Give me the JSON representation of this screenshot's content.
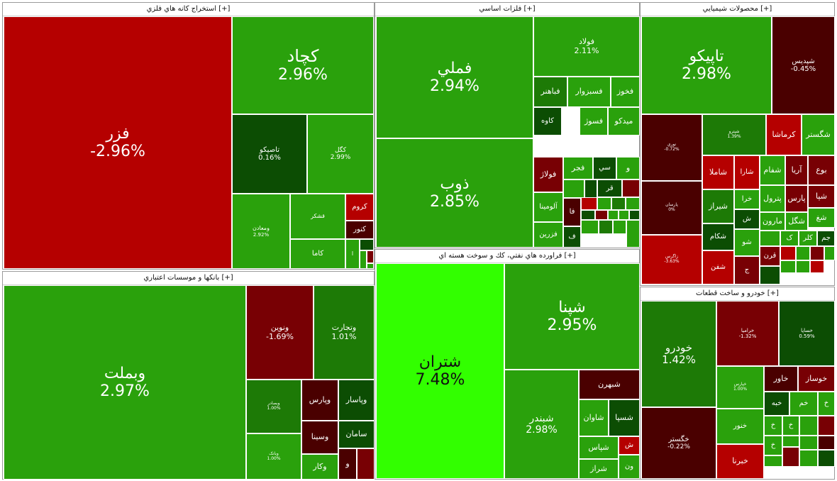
{
  "colors": {
    "strong_green": "#32ff00",
    "green": "#2aa10c",
    "mid_green": "#1d7a06",
    "dark_green": "#0c4d03",
    "red": "#b50000",
    "dark_red": "#780004",
    "darkest_red": "#4a0000"
  },
  "sectors": [
    {
      "title": "استخراج کانه هاي فلزي [+]",
      "tiles": [
        {
          "name": "فزر",
          "pct": "-2.96%",
          "color": "#b50000"
        },
        {
          "name": "کچاد",
          "pct": "2.96%",
          "color": "#2aa10c"
        },
        {
          "name": "تاصيکو",
          "pct": "0.16%",
          "color": "#0c4d03"
        },
        {
          "name": "کگل",
          "pct": "2.99%",
          "color": "#2aa10c"
        },
        {
          "name": "ومعادن",
          "pct": "2.92%",
          "color": "#2aa10c"
        },
        {
          "name": "قشکر",
          "pct": "",
          "color": "#2aa10c"
        },
        {
          "name": "کروم",
          "pct": "",
          "color": "#b50000"
        },
        {
          "name": "کنور",
          "pct": "",
          "color": "#4a0000"
        },
        {
          "name": "کاما",
          "pct": "",
          "color": "#2aa10c"
        },
        {
          "name": "ا",
          "pct": "",
          "color": "#2aa10c"
        },
        {
          "name": "",
          "pct": "",
          "color": "#0c4d03"
        },
        {
          "name": "",
          "pct": "",
          "color": "#2aa10c"
        },
        {
          "name": "",
          "pct": "",
          "color": "#780004"
        },
        {
          "name": "",
          "pct": "",
          "color": "#2aa10c"
        }
      ]
    },
    {
      "title": "فلزات اساسي [+]",
      "tiles": [
        {
          "name": "فملي",
          "pct": "2.94%",
          "color": "#2aa10c"
        },
        {
          "name": "فولاد",
          "pct": "2.11%",
          "color": "#2aa10c"
        },
        {
          "name": "ذوب",
          "pct": "2.85%",
          "color": "#2aa10c"
        },
        {
          "name": "فخوز",
          "pct": "",
          "color": "#2aa10c"
        },
        {
          "name": "فسبزوار",
          "pct": "",
          "color": "#2aa10c"
        },
        {
          "name": "فباهنر",
          "pct": "",
          "color": "#1d7a06"
        },
        {
          "name": "ميدکو",
          "pct": "",
          "color": "#2aa10c"
        },
        {
          "name": "فسوژ",
          "pct": "",
          "color": "#2aa10c"
        },
        {
          "name": "کاوه",
          "pct": "",
          "color": "#0c4d03"
        },
        {
          "name": "و",
          "pct": "",
          "color": "#2aa10c"
        },
        {
          "name": "سي",
          "pct": "",
          "color": "#0c4d03"
        },
        {
          "name": "فجر",
          "pct": "",
          "color": "#2aa10c"
        },
        {
          "name": "فولاژ",
          "pct": "",
          "color": "#780004"
        },
        {
          "name": "قر",
          "pct": "",
          "color": "#0c4d03"
        },
        {
          "name": "آلومينا",
          "pct": "",
          "color": "#2aa10c"
        },
        {
          "name": "فا",
          "pct": "",
          "color": "#4a0000"
        },
        {
          "name": "فزرين",
          "pct": "",
          "color": "#2aa10c"
        },
        {
          "name": "ف",
          "pct": "",
          "color": "#0c4d03"
        },
        {
          "name": "",
          "pct": "",
          "color": "#2aa10c"
        },
        {
          "name": "",
          "pct": "",
          "color": "#0c4d03"
        },
        {
          "name": "",
          "pct": "",
          "color": "#780004"
        },
        {
          "name": "",
          "pct": "",
          "color": "#b50000"
        },
        {
          "name": "",
          "pct": "",
          "color": "#2aa10c"
        },
        {
          "name": "",
          "pct": "",
          "color": "#1d7a06"
        },
        {
          "name": "",
          "pct": "",
          "color": "#2aa10c"
        },
        {
          "name": "",
          "pct": "",
          "color": "#0c4d03"
        },
        {
          "name": "",
          "pct": "",
          "color": "#780004"
        },
        {
          "name": "",
          "pct": "",
          "color": "#2aa10c"
        },
        {
          "name": "",
          "pct": "",
          "color": "#2aa10c"
        },
        {
          "name": "",
          "pct": "",
          "color": "#0c4d03"
        },
        {
          "name": "",
          "pct": "",
          "color": "#2aa10c"
        },
        {
          "name": "",
          "pct": "",
          "color": "#1d7a06"
        },
        {
          "name": "",
          "pct": "",
          "color": "#2aa10c"
        },
        {
          "name": "",
          "pct": "",
          "color": "#2aa10c"
        }
      ]
    },
    {
      "title": "محصولات شيميايي [+]",
      "tiles": [
        {
          "name": "تاپيکو",
          "pct": "2.98%",
          "color": "#2aa10c"
        },
        {
          "name": "شپديس",
          "pct": "-0.45%",
          "color": "#4a0000"
        },
        {
          "name": "نوري",
          "pct": "-0.72%",
          "color": "#4a0000"
        },
        {
          "name": "شپترو",
          "pct": "1.39%",
          "color": "#1d7a06"
        },
        {
          "name": "کرماشا",
          "pct": "",
          "color": "#b50000"
        },
        {
          "name": "شگستر",
          "pct": "",
          "color": "#2aa10c"
        },
        {
          "name": "پارسان",
          "pct": "0%",
          "color": "#4a0000"
        },
        {
          "name": "شاملا",
          "pct": "",
          "color": "#b50000"
        },
        {
          "name": "شارا",
          "pct": "",
          "color": "#b50000"
        },
        {
          "name": "شفام",
          "pct": "",
          "color": "#2aa10c"
        },
        {
          "name": "آريا",
          "pct": "",
          "color": "#780004"
        },
        {
          "name": "بوع",
          "pct": "",
          "color": "#780004"
        },
        {
          "name": "زاگرس",
          "pct": "-3.63%",
          "color": "#b50000"
        },
        {
          "name": "شيراز",
          "pct": "",
          "color": "#1d7a06"
        },
        {
          "name": "خرا",
          "pct": "",
          "color": "#2aa10c"
        },
        {
          "name": "پترول",
          "pct": "",
          "color": "#2aa10c"
        },
        {
          "name": "پارس",
          "pct": "",
          "color": "#780004"
        },
        {
          "name": "شپا",
          "pct": "",
          "color": "#780004"
        },
        {
          "name": "شکام",
          "pct": "",
          "color": "#0c4d03"
        },
        {
          "name": "مارون",
          "pct": "",
          "color": "#2aa10c"
        },
        {
          "name": "شگل",
          "pct": "",
          "color": "#2aa10c"
        },
        {
          "name": "شغ",
          "pct": "",
          "color": "#2aa10c"
        },
        {
          "name": "شيران",
          "pct": "",
          "color": "#780004"
        },
        {
          "name": "ش",
          "pct": "",
          "color": "#0c4d03"
        },
        {
          "name": "ک",
          "pct": "",
          "color": "#2aa10c"
        },
        {
          "name": "کلر",
          "pct": "",
          "color": "#2aa10c"
        },
        {
          "name": "جم",
          "pct": "",
          "color": "#0c4d03"
        },
        {
          "name": "قرن",
          "pct": "",
          "color": "#780004"
        },
        {
          "name": "شفن",
          "pct": "",
          "color": "#b50000"
        },
        {
          "name": "شو",
          "pct": "",
          "color": "#2aa10c"
        },
        {
          "name": "ج",
          "pct": "",
          "color": "#780004"
        },
        {
          "name": "",
          "pct": "",
          "color": "#2aa10c"
        },
        {
          "name": "",
          "pct": "",
          "color": "#b50000"
        },
        {
          "name": "",
          "pct": "",
          "color": "#2aa10c"
        },
        {
          "name": "",
          "pct": "",
          "color": "#780004"
        },
        {
          "name": "",
          "pct": "",
          "color": "#2aa10c"
        },
        {
          "name": "",
          "pct": "",
          "color": "#0c4d03"
        },
        {
          "name": "",
          "pct": "",
          "color": "#2aa10c"
        },
        {
          "name": "",
          "pct": "",
          "color": "#2aa10c"
        },
        {
          "name": "",
          "pct": "",
          "color": "#b50000"
        },
        {
          "name": "",
          "pct": "",
          "color": "#2aa10c"
        }
      ]
    },
    {
      "title": "بانکها و موسسات اعتباري [+]",
      "tiles": [
        {
          "name": "وبملت",
          "pct": "2.97%",
          "color": "#2aa10c"
        },
        {
          "name": "ونوين",
          "pct": "-1.69%",
          "color": "#780004"
        },
        {
          "name": "وتجارت",
          "pct": "1.01%",
          "color": "#1d7a06"
        },
        {
          "name": "وبصادر",
          "pct": "1.00%",
          "color": "#1d7a06"
        },
        {
          "name": "وپارس",
          "pct": "",
          "color": "#4a0000"
        },
        {
          "name": "وپاسار",
          "pct": "",
          "color": "#0c4d03"
        },
        {
          "name": "وسينا",
          "pct": "",
          "color": "#4a0000"
        },
        {
          "name": "سامان",
          "pct": "",
          "color": "#0c4d03"
        },
        {
          "name": "وبانک",
          "pct": "1.00%",
          "color": "#2aa10c"
        },
        {
          "name": "وکار",
          "pct": "",
          "color": "#2aa10c"
        },
        {
          "name": "و",
          "pct": "",
          "color": "#4a0000"
        },
        {
          "name": "",
          "pct": "",
          "color": "#780004"
        }
      ]
    },
    {
      "title": "فراورده هاي نفتي، کك و سوخت هسته اي [+]",
      "tiles": [
        {
          "name": "شتران",
          "pct": "7.48%",
          "color": "#32ff00"
        },
        {
          "name": "شپنا",
          "pct": "2.95%",
          "color": "#2aa10c"
        },
        {
          "name": "شبندر",
          "pct": "2.98%",
          "color": "#2aa10c"
        },
        {
          "name": "شبهرن",
          "pct": "",
          "color": "#4a0000"
        },
        {
          "name": "شاوان",
          "pct": "",
          "color": "#2aa10c"
        },
        {
          "name": "شسپا",
          "pct": "",
          "color": "#0c4d03"
        },
        {
          "name": "شپاس",
          "pct": "",
          "color": "#2aa10c"
        },
        {
          "name": "ش",
          "pct": "",
          "color": "#b50000"
        },
        {
          "name": "شراز",
          "pct": "",
          "color": "#2aa10c"
        },
        {
          "name": "ون",
          "pct": "",
          "color": "#2aa10c"
        }
      ]
    },
    {
      "title": "خودرو و ساخت قطعات [+]",
      "tiles": [
        {
          "name": "خودرو",
          "pct": "1.42%",
          "color": "#1d7a06"
        },
        {
          "name": "خراميا",
          "pct": "-1.32%",
          "color": "#780004"
        },
        {
          "name": "خساپا",
          "pct": "0.59%",
          "color": "#0c4d03"
        },
        {
          "name": "خگستر",
          "pct": "-0.22%",
          "color": "#4a0000"
        },
        {
          "name": "خپارس",
          "pct": "1.00%",
          "color": "#2aa10c"
        },
        {
          "name": "خاور",
          "pct": "",
          "color": "#4a0000"
        },
        {
          "name": "خوساز",
          "pct": "",
          "color": "#780004"
        },
        {
          "name": "خبه",
          "pct": "",
          "color": "#0c4d03"
        },
        {
          "name": "خم",
          "pct": "",
          "color": "#2aa10c"
        },
        {
          "name": "خ",
          "pct": "",
          "color": "#2aa10c"
        },
        {
          "name": "خنور",
          "pct": "",
          "color": "#2aa10c"
        },
        {
          "name": "خ",
          "pct": "",
          "color": "#2aa10c"
        },
        {
          "name": "خ",
          "pct": "",
          "color": "#2aa10c"
        },
        {
          "name": "خبرنا",
          "pct": "",
          "color": "#b50000"
        },
        {
          "name": "خ",
          "pct": "",
          "color": "#2aa10c"
        },
        {
          "name": "",
          "pct": "",
          "color": "#2aa10c"
        },
        {
          "name": "",
          "pct": "",
          "color": "#780004"
        },
        {
          "name": "",
          "pct": "",
          "color": "#2aa10c"
        },
        {
          "name": "",
          "pct": "",
          "color": "#4a0000"
        },
        {
          "name": "",
          "pct": "",
          "color": "#2aa10c"
        },
        {
          "name": "",
          "pct": "",
          "color": "#2aa10c"
        },
        {
          "name": "",
          "pct": "",
          "color": "#780004"
        },
        {
          "name": "",
          "pct": "",
          "color": "#2aa10c"
        },
        {
          "name": "",
          "pct": "",
          "color": "#0c4d03"
        }
      ]
    }
  ]
}
